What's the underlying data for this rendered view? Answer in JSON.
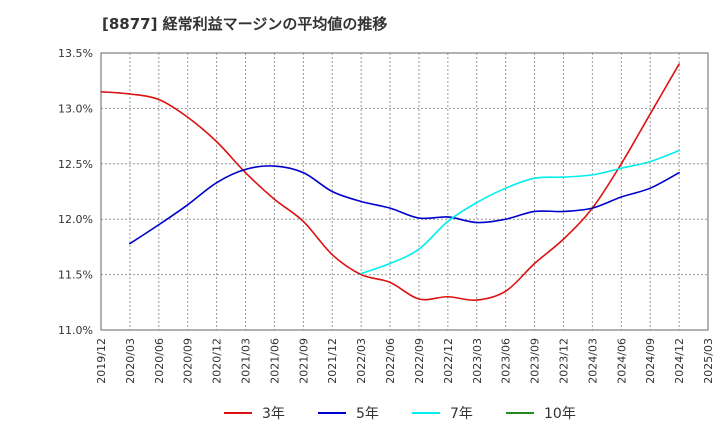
{
  "chart_data": {
    "type": "line",
    "title": "[8877]  経常利益マージンの平均値の推移",
    "y_ticks": [
      "13.5%",
      "13.0%",
      "12.5%",
      "12.0%",
      "11.5%",
      "11.0%"
    ],
    "ylim": [
      11.0,
      13.5
    ],
    "x_ticks": [
      "2019/12",
      "2020/03",
      "2020/06",
      "2020/09",
      "2020/12",
      "2021/03",
      "2021/06",
      "2021/09",
      "2021/12",
      "2022/03",
      "2022/06",
      "2022/09",
      "2022/12",
      "2023/03",
      "2023/06",
      "2023/09",
      "2023/12",
      "2024/03",
      "2024/06",
      "2024/09",
      "2024/12",
      "2025/03"
    ],
    "grid": true,
    "legend_position": "bottom",
    "series": [
      {
        "name": "3年",
        "color": "#dd1111",
        "x": [
          "2019/12",
          "2020/03",
          "2020/06",
          "2020/09",
          "2020/12",
          "2021/03",
          "2021/06",
          "2021/09",
          "2021/12",
          "2022/03",
          "2022/06",
          "2022/09",
          "2022/12",
          "2023/03",
          "2023/06",
          "2023/09",
          "2023/12",
          "2024/03",
          "2024/06",
          "2024/09",
          "2024/12"
        ],
        "values": [
          13.15,
          13.13,
          13.08,
          12.92,
          12.7,
          12.42,
          12.18,
          11.98,
          11.68,
          11.5,
          11.43,
          11.28,
          11.3,
          11.27,
          11.35,
          11.6,
          11.82,
          12.1,
          12.5,
          12.95,
          13.4
        ]
      },
      {
        "name": "5年",
        "color": "#0000cc",
        "x": [
          "2020/03",
          "2020/06",
          "2020/09",
          "2020/12",
          "2021/03",
          "2021/06",
          "2021/09",
          "2021/12",
          "2022/03",
          "2022/06",
          "2022/09",
          "2022/12",
          "2023/03",
          "2023/06",
          "2023/09",
          "2023/12",
          "2024/03",
          "2024/06",
          "2024/09",
          "2024/12"
        ],
        "values": [
          11.78,
          11.95,
          12.13,
          12.33,
          12.45,
          12.48,
          12.42,
          12.25,
          12.16,
          12.1,
          12.01,
          12.02,
          11.97,
          12.0,
          12.07,
          12.07,
          12.1,
          12.2,
          12.28,
          12.42
        ]
      },
      {
        "name": "7年",
        "color": "#00eeee",
        "x": [
          "2022/03",
          "2022/06",
          "2022/09",
          "2022/12",
          "2023/03",
          "2023/06",
          "2023/09",
          "2023/12",
          "2024/03",
          "2024/06",
          "2024/09",
          "2024/12"
        ],
        "values": [
          11.51,
          11.6,
          11.73,
          11.98,
          12.15,
          12.28,
          12.37,
          12.38,
          12.4,
          12.46,
          12.52,
          12.62
        ]
      },
      {
        "name": "10年",
        "color": "#228822",
        "x": [],
        "values": []
      }
    ]
  }
}
